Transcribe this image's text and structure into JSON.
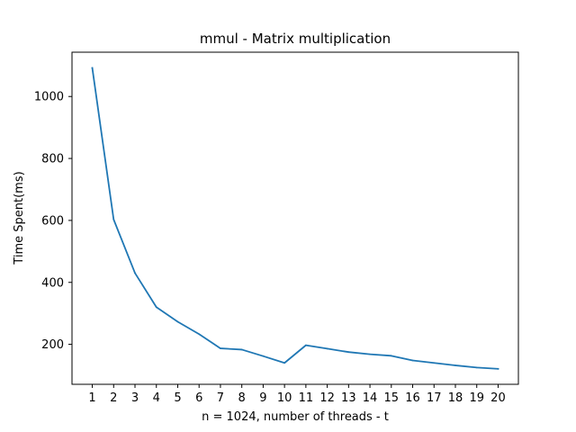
{
  "chart_data": {
    "type": "line",
    "title": "mmul - Matrix multiplication",
    "xlabel": "n = 1024, number of threads - t",
    "ylabel": "Time Spent(ms)",
    "x": [
      1,
      2,
      3,
      4,
      5,
      6,
      7,
      8,
      9,
      10,
      11,
      12,
      13,
      14,
      15,
      16,
      17,
      18,
      19,
      20
    ],
    "xticks": [
      "1",
      "2",
      "3",
      "4",
      "5",
      "6",
      "7",
      "8",
      "9",
      "10",
      "11",
      "12",
      "13",
      "14",
      "15",
      "16",
      "17",
      "18",
      "19",
      "20"
    ],
    "yticks": [
      "200",
      "400",
      "600",
      "800",
      "1000"
    ],
    "xlim": [
      0.05,
      20.95
    ],
    "ylim": [
      71,
      1143
    ],
    "series": [
      {
        "color": "#1f77b4",
        "values": [
          1092,
          603,
          430,
          320,
          273,
          233,
          187,
          183,
          162,
          140,
          197,
          186,
          175,
          168,
          163,
          148,
          140,
          132,
          125,
          121
        ]
      }
    ],
    "grid": false,
    "legend": "none"
  }
}
